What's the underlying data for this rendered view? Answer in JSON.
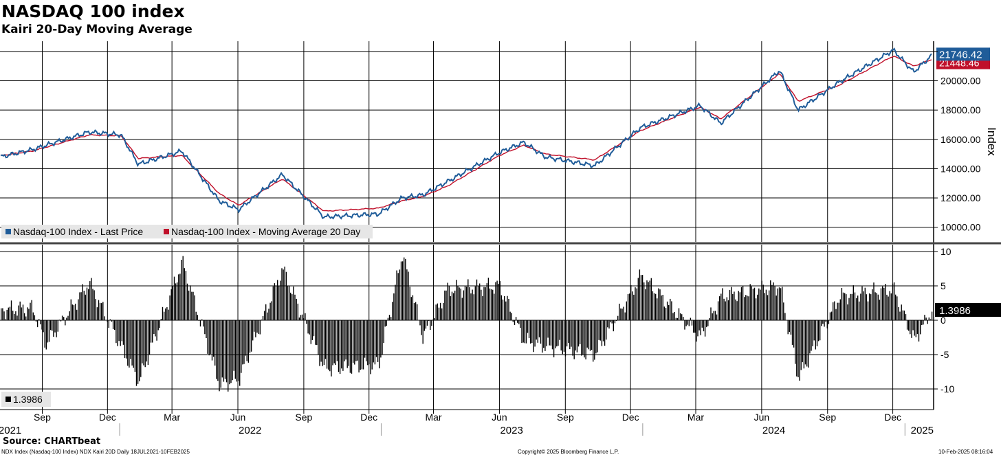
{
  "title": "NASDAQ 100 index",
  "subtitle": "Kairi 20-Day Moving Average",
  "source": "Source: CHARTbeat",
  "footer": {
    "left": "NDX Index (Nasdaq-100 Index) NDX Kairi 20D  Daily 18JUL2021-10FEB2025",
    "center": "Copyright© 2025 Bloomberg Finance L.P.",
    "right": "10-Feb-2025 08:16:04"
  },
  "colors": {
    "price": "#1f5c99",
    "ma": "#c0102a",
    "histogram": "#000000",
    "grid": "#000000"
  },
  "chart_data": [
    {
      "type": "line",
      "ylabel": "Index",
      "ylim": [
        9000,
        22700
      ],
      "y_ticks": [
        "10000.00",
        "12000.00",
        "14000.00",
        "16000.00",
        "18000.00",
        "20000.00"
      ],
      "grid": true,
      "legend_position": "bottom-left",
      "last_value_labels": {
        "price": "21746.42",
        "ma": "21448.46"
      },
      "x_range": [
        "2021-07-18",
        "2025-02-10"
      ],
      "x": [
        "2021-07-19",
        "2021-09-01",
        "2021-11-19",
        "2022-01-03",
        "2022-01-27",
        "2022-03-29",
        "2022-05-20",
        "2022-06-16",
        "2022-08-16",
        "2022-10-13",
        "2022-12-28",
        "2023-01-30",
        "2023-02-28",
        "2023-04-03",
        "2023-06-15",
        "2023-07-19",
        "2023-08-18",
        "2023-10-26",
        "2023-12-29",
        "2024-03-21",
        "2024-04-19",
        "2024-07-10",
        "2024-08-05",
        "2024-10-01",
        "2024-12-16",
        "2025-01-13",
        "2025-02-07"
      ],
      "series": [
        {
          "name": "Nasdaq-100 Index - Last Price",
          "values": [
            14800,
            15300,
            16500,
            16300,
            14300,
            15200,
            11800,
            11200,
            13600,
            10700,
            10900,
            12000,
            12200,
            13100,
            15100,
            15800,
            14800,
            14200,
            16800,
            18300,
            17100,
            20700,
            18000,
            19900,
            22100,
            20600,
            21700
          ]
        },
        {
          "name": "Nasdaq-100 Index - Moving Average 20 Day",
          "values": [
            14900,
            15200,
            16300,
            16250,
            14700,
            14900,
            12300,
            11500,
            13300,
            11100,
            11300,
            11800,
            12100,
            12800,
            14900,
            15600,
            15000,
            14600,
            16600,
            18200,
            17400,
            20500,
            18600,
            19700,
            21700,
            21000,
            21450
          ]
        }
      ]
    },
    {
      "type": "bar",
      "ylim": [
        -13,
        11
      ],
      "y_ticks": [
        "10",
        "5",
        "0",
        "-5",
        "-10"
      ],
      "last_value_label": "1.3986",
      "legend": "1.3986",
      "x": [
        "2021-07-19",
        "2021-09-01",
        "2021-09-20",
        "2021-11-19",
        "2022-01-27",
        "2022-03-29",
        "2022-05-20",
        "2022-06-16",
        "2022-08-16",
        "2022-10-13",
        "2022-12-28",
        "2023-01-30",
        "2023-02-28",
        "2023-04-03",
        "2023-06-15",
        "2023-07-19",
        "2023-08-18",
        "2023-10-26",
        "2023-12-29",
        "2024-03-21",
        "2024-04-19",
        "2024-07-10",
        "2024-08-05",
        "2024-10-01",
        "2024-12-16",
        "2025-01-13",
        "2025-02-07"
      ],
      "values": [
        1.5,
        1.8,
        -3.5,
        5.5,
        -9,
        8.5,
        -9.5,
        -8.5,
        7.5,
        -7,
        -6.5,
        9.8,
        -2.5,
        4.5,
        5,
        -3,
        -3.8,
        -5,
        6.5,
        -2.5,
        3.5,
        5,
        -8.5,
        3.5,
        4.5,
        -3,
        1.3986
      ]
    }
  ],
  "x_axis": {
    "months": [
      "Sep",
      "Dec",
      "Mar",
      "Jun",
      "Sep",
      "Dec",
      "Mar",
      "Jun",
      "Sep",
      "Dec",
      "Mar",
      "Jun",
      "Sep",
      "Dec"
    ],
    "years": [
      "2021",
      "2022",
      "2023",
      "2024",
      "2025"
    ]
  }
}
